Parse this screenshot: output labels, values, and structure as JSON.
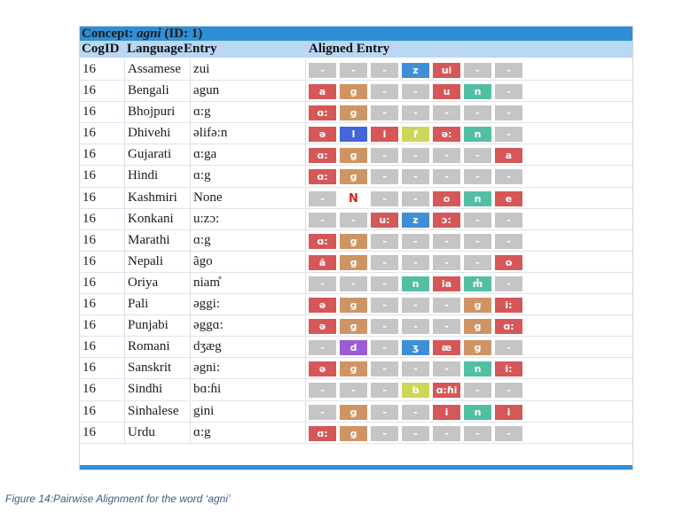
{
  "title_prefix": "Concept: ",
  "title_word": "agni",
  "title_suffix": " (ID: 1)",
  "headers": {
    "cogid": "CogID",
    "language": "Language",
    "entry": "Entry",
    "aligned": "Aligned Entry"
  },
  "caption": "Figure 14:Pairwise Alignment for the word ‘agni’",
  "colors": {
    "gap": "#c5c5c5",
    "vowel_red": "#d55757",
    "g_tan": "#cf9464",
    "nasal_teal": "#52bfa4",
    "dental_blue": "#3f8fd6",
    "liquid_blue": "#4466d8",
    "purple": "#9a5cd4",
    "yellow": "#cfd45a",
    "N_red": "#e01b1b"
  },
  "rows": [
    {
      "cogid": "16",
      "language": "Assamese",
      "entry": "zui",
      "segs": [
        "-",
        "-",
        "-",
        "z",
        "ui",
        "-",
        "-"
      ],
      "cols": [
        "gap",
        "gap",
        "gap",
        "dental_blue",
        "vowel_red",
        "gap",
        "gap"
      ]
    },
    {
      "cogid": "16",
      "language": "Bengali",
      "entry": "agun",
      "segs": [
        "a",
        "g",
        "-",
        "-",
        "u",
        "n",
        "-"
      ],
      "cols": [
        "vowel_red",
        "g_tan",
        "gap",
        "gap",
        "vowel_red",
        "nasal_teal",
        "gap"
      ]
    },
    {
      "cogid": "16",
      "language": "Bhojpuri",
      "entry": "ɑ:g",
      "segs": [
        "ɑ:",
        "g",
        "-",
        "-",
        "-",
        "-",
        "-"
      ],
      "cols": [
        "vowel_red",
        "g_tan",
        "gap",
        "gap",
        "gap",
        "gap",
        "gap"
      ]
    },
    {
      "cogid": "16",
      "language": "Dhivehi",
      "entry": "əlifə:n",
      "segs": [
        "ə",
        "l",
        "i",
        "f",
        "ə:",
        "n",
        "-"
      ],
      "cols": [
        "vowel_red",
        "liquid_blue",
        "vowel_red",
        "yellow",
        "vowel_red",
        "nasal_teal",
        "gap"
      ]
    },
    {
      "cogid": "16",
      "language": "Gujarati",
      "entry": "ɑ:ga",
      "segs": [
        "ɑ:",
        "g",
        "-",
        "-",
        "-",
        "-",
        "a"
      ],
      "cols": [
        "vowel_red",
        "g_tan",
        "gap",
        "gap",
        "gap",
        "gap",
        "vowel_red"
      ]
    },
    {
      "cogid": "16",
      "language": "Hindi",
      "entry": "ɑ:g",
      "segs": [
        "ɑ:",
        "g",
        "-",
        "-",
        "-",
        "-",
        "-"
      ],
      "cols": [
        "vowel_red",
        "g_tan",
        "gap",
        "gap",
        "gap",
        "gap",
        "gap"
      ]
    },
    {
      "cogid": "16",
      "language": "Kashmiri",
      "entry": "None",
      "segs": [
        "-",
        "N",
        "-",
        "-",
        "o",
        "n",
        "e"
      ],
      "cols": [
        "gap",
        "N",
        "gap",
        "gap",
        "vowel_red",
        "nasal_teal",
        "vowel_red"
      ]
    },
    {
      "cogid": "16",
      "language": "Konkani",
      "entry": "u:zɔ:",
      "segs": [
        "-",
        "-",
        "u:",
        "z",
        "ɔ:",
        "-",
        "-"
      ],
      "cols": [
        "gap",
        "gap",
        "vowel_red",
        "dental_blue",
        "vowel_red",
        "gap",
        "gap"
      ]
    },
    {
      "cogid": "16",
      "language": "Marathi",
      "entry": "ɑ:g",
      "segs": [
        "ɑ:",
        "g",
        "-",
        "-",
        "-",
        "-",
        "-"
      ],
      "cols": [
        "vowel_red",
        "g_tan",
        "gap",
        "gap",
        "gap",
        "gap",
        "gap"
      ]
    },
    {
      "cogid": "16",
      "language": "Nepali",
      "entry": "ãgo",
      "segs": [
        "ã",
        "g",
        "-",
        "-",
        "-",
        "-",
        "o"
      ],
      "cols": [
        "vowel_red",
        "g_tan",
        "gap",
        "gap",
        "gap",
        "gap",
        "vowel_red"
      ]
    },
    {
      "cogid": "16",
      "language": "Oriya",
      "entry": "niam̊",
      "segs": [
        "-",
        "-",
        "-",
        "n",
        "ia",
        "m̊",
        "-"
      ],
      "cols": [
        "gap",
        "gap",
        "gap",
        "nasal_teal",
        "vowel_red",
        "nasal_teal",
        "gap"
      ]
    },
    {
      "cogid": "16",
      "language": "Pali",
      "entry": "əggi:",
      "segs": [
        "ə",
        "g",
        "-",
        "-",
        "-",
        "g",
        "i:"
      ],
      "cols": [
        "vowel_red",
        "g_tan",
        "gap",
        "gap",
        "gap",
        "g_tan",
        "vowel_red"
      ]
    },
    {
      "cogid": "16",
      "language": "Punjabi",
      "entry": "əggɑ:",
      "segs": [
        "ə",
        "g",
        "-",
        "-",
        "-",
        "g",
        "ɑ:"
      ],
      "cols": [
        "vowel_red",
        "g_tan",
        "gap",
        "gap",
        "gap",
        "g_tan",
        "vowel_red"
      ]
    },
    {
      "cogid": "16",
      "language": "Romani",
      "entry": "dʒæg",
      "segs": [
        "-",
        "d",
        "-",
        "ʒ",
        "æ",
        "g",
        "-"
      ],
      "cols": [
        "gap",
        "purple",
        "gap",
        "dental_blue",
        "vowel_red",
        "g_tan",
        "gap"
      ]
    },
    {
      "cogid": "16",
      "language": "Sanskrit",
      "entry": "əgni:",
      "segs": [
        "ə",
        "g",
        "-",
        "-",
        "-",
        "n",
        "i:"
      ],
      "cols": [
        "vowel_red",
        "g_tan",
        "gap",
        "gap",
        "gap",
        "nasal_teal",
        "vowel_red"
      ]
    },
    {
      "cogid": "16",
      "language": "Sindhi",
      "entry": "bɑ:ɦi",
      "segs": [
        "-",
        "-",
        "-",
        "b",
        "ɑ:ɦi",
        "-",
        "-"
      ],
      "cols": [
        "gap",
        "gap",
        "gap",
        "yellow",
        "vowel_red",
        "gap",
        "gap"
      ]
    },
    {
      "cogid": "16",
      "language": "Sinhalese",
      "entry": "gini",
      "segs": [
        "-",
        "g",
        "-",
        "-",
        "i",
        "n",
        "i"
      ],
      "cols": [
        "gap",
        "g_tan",
        "gap",
        "gap",
        "vowel_red",
        "nasal_teal",
        "vowel_red"
      ]
    },
    {
      "cogid": "16",
      "language": "Urdu",
      "entry": "ɑ:g",
      "segs": [
        "ɑ:",
        "g",
        "-",
        "-",
        "-",
        "-",
        "-"
      ],
      "cols": [
        "vowel_red",
        "g_tan",
        "gap",
        "gap",
        "gap",
        "gap",
        "gap"
      ]
    }
  ]
}
